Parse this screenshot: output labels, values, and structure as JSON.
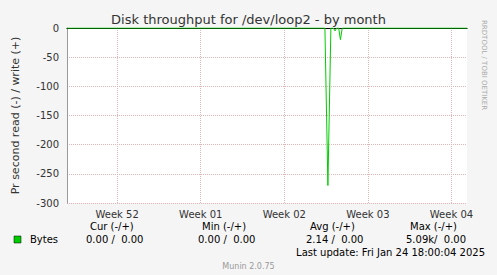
{
  "chart_data": {
    "type": "line",
    "title": "Disk throughput for /dev/loop2 - by month",
    "y_label": "Pr second read (-) / write (+)",
    "x": [
      0,
      21.6,
      21.85,
      22.1,
      22.3,
      22.45,
      22.6,
      22.75,
      22.9,
      23.05,
      23.3,
      33.5
    ],
    "series": [
      {
        "name": "Bytes",
        "color": "#00cc00",
        "values": [
          0,
          0,
          -270,
          0,
          0,
          -5,
          0,
          0,
          -20,
          0,
          0,
          0
        ]
      }
    ],
    "xlim": [
      0,
      33.5
    ],
    "xticks": [
      {
        "value": 4.2,
        "label": "Week 52"
      },
      {
        "value": 11.2,
        "label": "Week 01"
      },
      {
        "value": 18.2,
        "label": "Week 02"
      },
      {
        "value": 25.2,
        "label": "Week 03"
      },
      {
        "value": 32.2,
        "label": "Week 04"
      }
    ],
    "ylim": [
      -300,
      0
    ],
    "yticks": [
      -300,
      -250,
      -200,
      -150,
      -100,
      -50,
      0
    ],
    "grid": true,
    "legend_table": {
      "columns": [
        "Cur (-/+)",
        "Min (-/+)",
        "Avg (-/+)",
        "Max (-/+)"
      ],
      "rows": [
        {
          "name": "Bytes",
          "color": "#00cc00",
          "values": [
            "0.00 /  0.00",
            "0.00 /  0.00",
            "2.14 /  0.00",
            "5.09k/  0.00"
          ]
        }
      ]
    },
    "footer": "Last update: Fri Jan 24 18:00:04 2025",
    "credit": "Munin 2.0.75",
    "side_text": "RRDTOOL / TOBI OETIKER"
  }
}
